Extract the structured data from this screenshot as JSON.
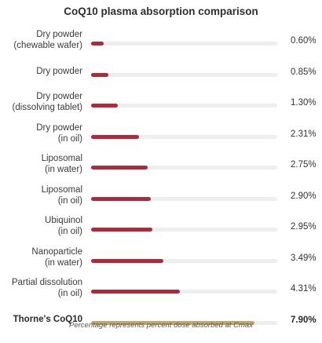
{
  "chart_data": {
    "type": "bar",
    "orientation": "horizontal",
    "title": "CoQ10 plasma absorption comparison",
    "xlim": [
      0,
      9
    ],
    "categories": [
      "Dry powder\n(chewable wafer)",
      "Dry powder",
      "Dry powder\n(dissolving tablet)",
      "Dry powder\n(in oil)",
      "Liposomal\n(in water)",
      "Liposomal\n(in oil)",
      "Ubiquinol\n(in oil)",
      "Nanoparticle\n(in water)",
      "Partial dissolution\n(in oil)",
      "Thorne's CoQ10"
    ],
    "values": [
      0.6,
      0.85,
      1.3,
      2.31,
      2.75,
      2.9,
      2.95,
      3.49,
      4.31,
      7.9
    ],
    "value_labels": [
      "0.60%",
      "0.85%",
      "1.30%",
      "2.31%",
      "2.75%",
      "2.90%",
      "2.95%",
      "3.49%",
      "4.31%",
      "7.90%"
    ],
    "highlight_index": 9,
    "footnote": "Percentage represents percent dose absorbed at Cmax",
    "colors": {
      "bar": "#b1283a",
      "highlight": "#c1a56a",
      "track": "#eeeeee"
    }
  }
}
